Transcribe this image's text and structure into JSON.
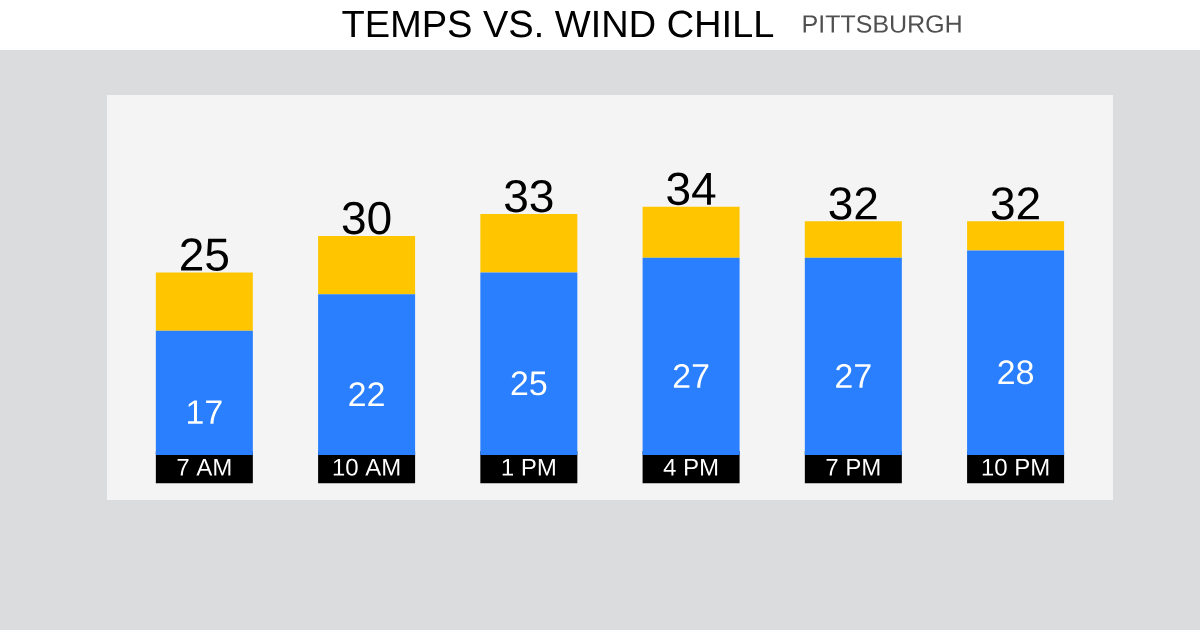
{
  "chart_data": {
    "type": "bar",
    "title": "TEMPS VS. WIND CHILL",
    "subtitle": "PITTSBURGH",
    "categories": [
      "7 AM",
      "10 AM",
      "1 PM",
      "4 PM",
      "7 PM",
      "10 PM"
    ],
    "stacked": true,
    "series": [
      {
        "color": "#2a7fff",
        "values": [
          17,
          22,
          25,
          27,
          27,
          28
        ],
        "value_labels": [
          "17",
          "22",
          "25",
          "27",
          "27",
          "28"
        ]
      },
      {
        "color": "#ffc600",
        "values": [
          8,
          8,
          8,
          7,
          5,
          4
        ]
      }
    ],
    "totals": [
      "25",
      "30",
      "33",
      "34",
      "32",
      "32"
    ]
  }
}
